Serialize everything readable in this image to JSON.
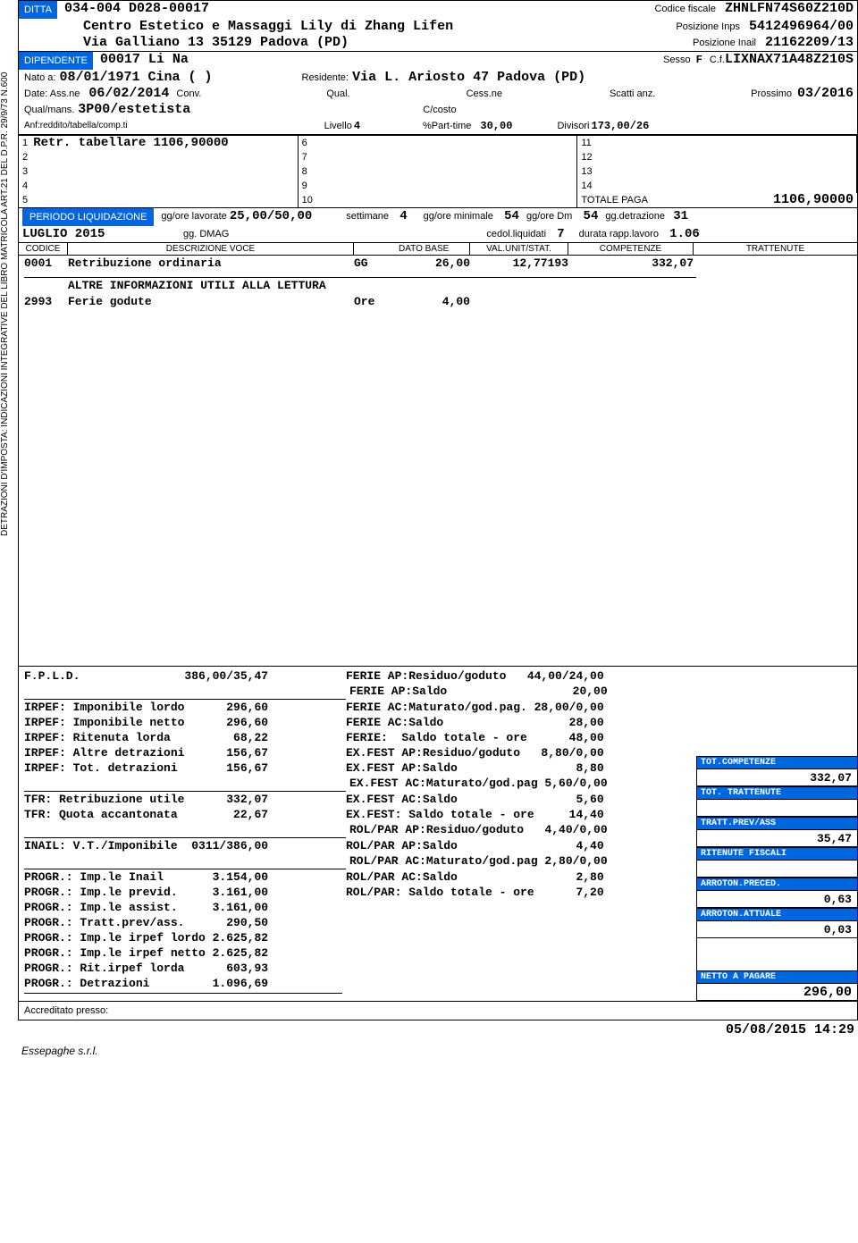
{
  "colors": {
    "blue": "#0066e0",
    "text": "#000000",
    "bg": "#ffffff"
  },
  "header": {
    "ditta_label": "DITTA",
    "ditta_code": "034-004 D028-00017",
    "cf_label": "Codice fiscale",
    "cf": "ZHNLFN74S60Z210D",
    "company": "Centro Estetico e Massaggi Lily di Zhang Lifen",
    "inps_label": "Posizione Inps",
    "inps": "5412496964/00",
    "address": "Via Galliano 13  35129 Padova  (PD)",
    "inail_label": "Posizione Inail",
    "inail": "21162209/13"
  },
  "dip": {
    "label": "DIPENDENTE",
    "code": "00017 Li Na",
    "sesso_label": "Sesso",
    "sesso": "F",
    "cf_label": "C.f.",
    "cf": "LIXNAX71A48Z210S",
    "nato_label": "Nato a:",
    "nato": "08/01/1971 Cina  (  )",
    "res_label": "Residente:",
    "residente": "Via L. Ariosto 47  Padova  (PD)",
    "ass_label": "Date: Ass.ne",
    "assunz": "06/02/2014",
    "conv_label": "Conv.",
    "qual_label": "Qual.",
    "cess_label": "Cess.ne",
    "scatti_label": "Scatti anz.",
    "pross_label": "Prossimo",
    "prossimo": "03/2016",
    "qualmans_label": "Qual/mans.",
    "qualmans": "3P00/estetista",
    "ccosto_label": "C/costo",
    "anf_label": "Anf:reddito/tabella/comp.ti",
    "livello_label": "Livello",
    "livello": "4",
    "pt_label": "%Part-time",
    "parttime": "30,00",
    "div_label": "Divisori",
    "divisori": "173,00/26"
  },
  "retr": {
    "r1": "Retr. tabellare 1106,90000",
    "totale_label": "TOTALE PAGA",
    "totale": "1106,90000"
  },
  "periodo": {
    "label": "PERIODO LIQUIDAZIONE",
    "gg_lav_label": "gg/ore lavorate",
    "gg_lav": "25,00/50,00",
    "sett_label": "settimane",
    "settimane": "4",
    "min_label": "gg/ore minimale",
    "minimale": "54",
    "dm_label": "gg/ore Dm",
    "dm": "54",
    "detr_label": "gg.detrazione",
    "detrazione": "31",
    "mese": "LUGLIO 2015",
    "dmag_label": "gg. DMAG",
    "cedol_label": "cedol.liquidati",
    "cedol": "7",
    "durata_label": "durata rapp.lavoro",
    "durata": "1.06"
  },
  "table": {
    "h_cod": "CODICE",
    "h_desc": "DESCRIZIONE VOCE",
    "h_db": "DATO BASE",
    "h_unit": "VAL.UNIT/STAT.",
    "h_comp": "COMPETENZE",
    "h_trat": "TRATTENUTE",
    "rows": [
      {
        "cod": "0001",
        "desc": "Retribuzione ordinaria",
        "db": "GG",
        "dbv": "26,00",
        "unit": "12,77193",
        "comp": "332,07",
        "trat": ""
      }
    ],
    "info_title": "ALTRE INFORMAZIONI UTILI ALLA LETTURA",
    "info_rows": [
      {
        "cod": "2993",
        "desc": "Ferie godute",
        "db": "Ore",
        "dbv": "4,00",
        "unit": "",
        "comp": "",
        "trat": ""
      }
    ]
  },
  "bottom_left": [
    "F.P.L.D.               386,00/35,47",
    "",
    "IRPEF: Imponibile lordo      296,60",
    "IRPEF: Imponibile netto      296,60",
    "IRPEF: Ritenuta lorda         68,22",
    "IRPEF: Altre detrazioni      156,67",
    "IRPEF: Tot. detrazioni       156,67",
    "",
    "TFR: Retribuzione utile      332,07",
    "TFR: Quota accantonata        22,67",
    "",
    "INAIL: V.T./Imponibile  0311/386,00",
    "",
    "PROGR.: Imp.le Inail       3.154,00",
    "PROGR.: Imp.le previd.     3.161,00",
    "PROGR.: Imp.le assist.     3.161,00",
    "PROGR.: Tratt.prev/ass.      290,50",
    "PROGR.: Imp.le irpef lordo 2.625,82",
    "PROGR.: Imp.le irpef netto 2.625,82",
    "PROGR.: Rit.irpef lorda      603,93",
    "PROGR.: Detrazioni         1.096,69"
  ],
  "bottom_mid": [
    "FERIE AP:Residuo/goduto   44,00/24,00",
    "FERIE AP:Saldo                  20,00",
    "FERIE AC:Maturato/god.pag. 28,00/0,00",
    "FERIE AC:Saldo                  28,00",
    "FERIE:  Saldo totale - ore      48,00",
    "EX.FEST AP:Residuo/goduto   8,80/0,00",
    "EX.FEST AP:Saldo                 8,80",
    "EX.FEST AC:Maturato/god.pag 5,60/0,00",
    "EX.FEST AC:Saldo                 5,60",
    "EX.FEST: Saldo totale - ore     14,40",
    "ROL/PAR AP:Residuo/goduto   4,40/0,00",
    "ROL/PAR AP:Saldo                 4,40",
    "ROL/PAR AC:Maturato/god.pag 2,80/0,00",
    "ROL/PAR AC:Saldo                 2,80",
    "ROL/PAR: Saldo totale - ore      7,20"
  ],
  "totals": {
    "tot_comp_label": "TOT.COMPETENZE",
    "tot_comp": "332,07",
    "tot_trat_label": "TOT. TRATTENUTE",
    "tot_trat": "",
    "prev_label": "TRATT.PREV/ASS",
    "prev": "35,47",
    "fisc_label": "RITENUTE FISCALI",
    "fisc": "",
    "arr_prec_label": "ARROTON.PRECED.",
    "arr_prec": "0,63",
    "arr_att_label": "ARROTON.ATTUALE",
    "arr_att": "0,03",
    "netto_label": "NETTO A PAGARE",
    "netto": "296,00"
  },
  "footer": {
    "accreditato": "Accreditato presso:",
    "timestamp": "05/08/2015  14:29",
    "essepaghe": "Essepaghe s.r.l."
  },
  "vertical": "DETRAZIONI D'IMPOSTA: INDICAZIONI INTEGRATIVE DEL LIBRO MATRICOLA ART.21 DEL D.P.R. 29/9/73 N.600"
}
